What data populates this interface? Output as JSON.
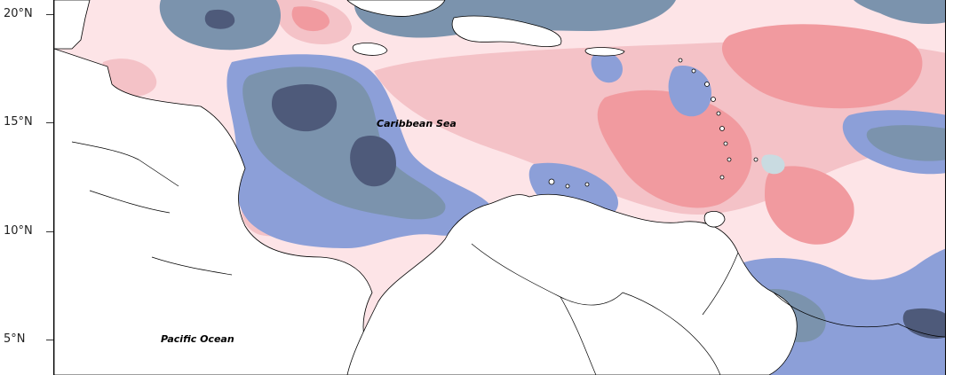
{
  "map": {
    "latitude_labels": [
      "20°N",
      "15°N",
      "10°N",
      "5°N"
    ],
    "sea_labels": {
      "caribbean": "Caribbean Sea",
      "pacific": "Pacific Ocean"
    },
    "colors": {
      "strong_negative": "#4e5a7a",
      "negative": "#7b93ad",
      "weak_negative": "#8c9fd8",
      "near_zero_negative": "#c9dbe1",
      "near_zero_positive": "#fde4e7",
      "weak_positive": "#f4c2c7",
      "positive": "#f19a9f",
      "land": "#ffffff",
      "coast": "#000000"
    }
  }
}
